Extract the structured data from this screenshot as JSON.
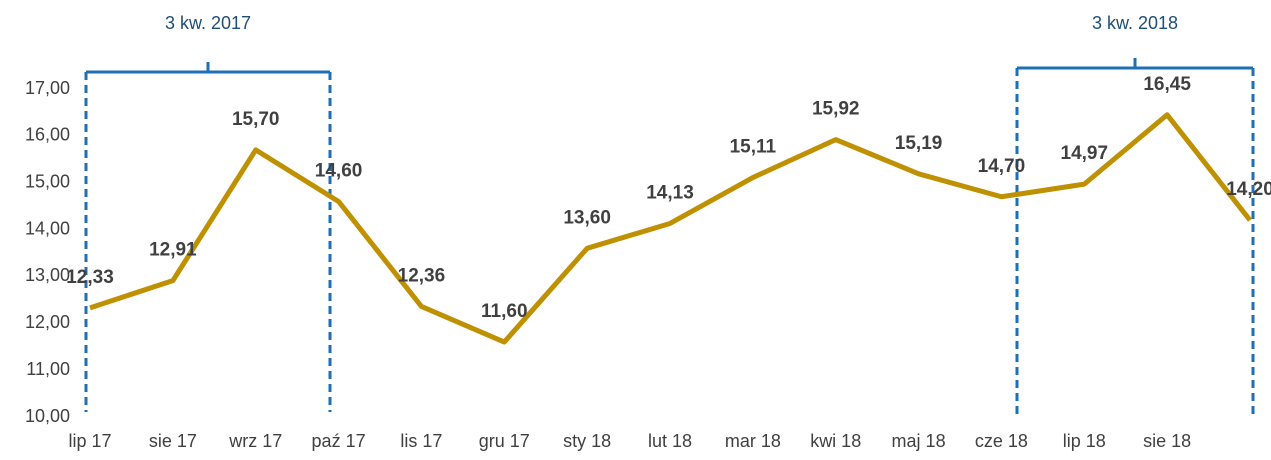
{
  "chart_data": {
    "type": "line",
    "annotations": [
      "3 kw. 2017",
      "3 kw. 2018"
    ],
    "categories": [
      "lip 17",
      "sie 17",
      "wrz 17",
      "paź 17",
      "lis 17",
      "gru 17",
      "sty 18",
      "lut 18",
      "mar 18",
      "kwi 18",
      "maj 18",
      "cze 18",
      "lip 18",
      "sie 18",
      null
    ],
    "series": [
      {
        "color": "#bf9000",
        "values": [
          12.33,
          12.91,
          15.7,
          14.6,
          12.36,
          11.6,
          13.6,
          14.13,
          15.11,
          15.92,
          15.19,
          14.7,
          14.97,
          16.45,
          14.2
        ],
        "value_labels": [
          "12,33",
          "12,91",
          "15,70",
          "14,60",
          "12,36",
          "11,60",
          "13,60",
          "14,13",
          "15,11",
          "15,92",
          "15,19",
          "14,70",
          "14,97",
          "16,45",
          "14,20"
        ]
      }
    ],
    "ylim": [
      10,
      17
    ],
    "yticks": [
      {
        "value": 10,
        "label": "10,00"
      },
      {
        "value": 11,
        "label": "11,00"
      },
      {
        "value": 12,
        "label": "12,00"
      },
      {
        "value": 13,
        "label": "13,00"
      },
      {
        "value": 14,
        "label": "14,00"
      },
      {
        "value": 15,
        "label": "15,00"
      },
      {
        "value": 16,
        "label": "16,00"
      },
      {
        "value": 17,
        "label": "17,00"
      }
    ],
    "grid": false
  }
}
